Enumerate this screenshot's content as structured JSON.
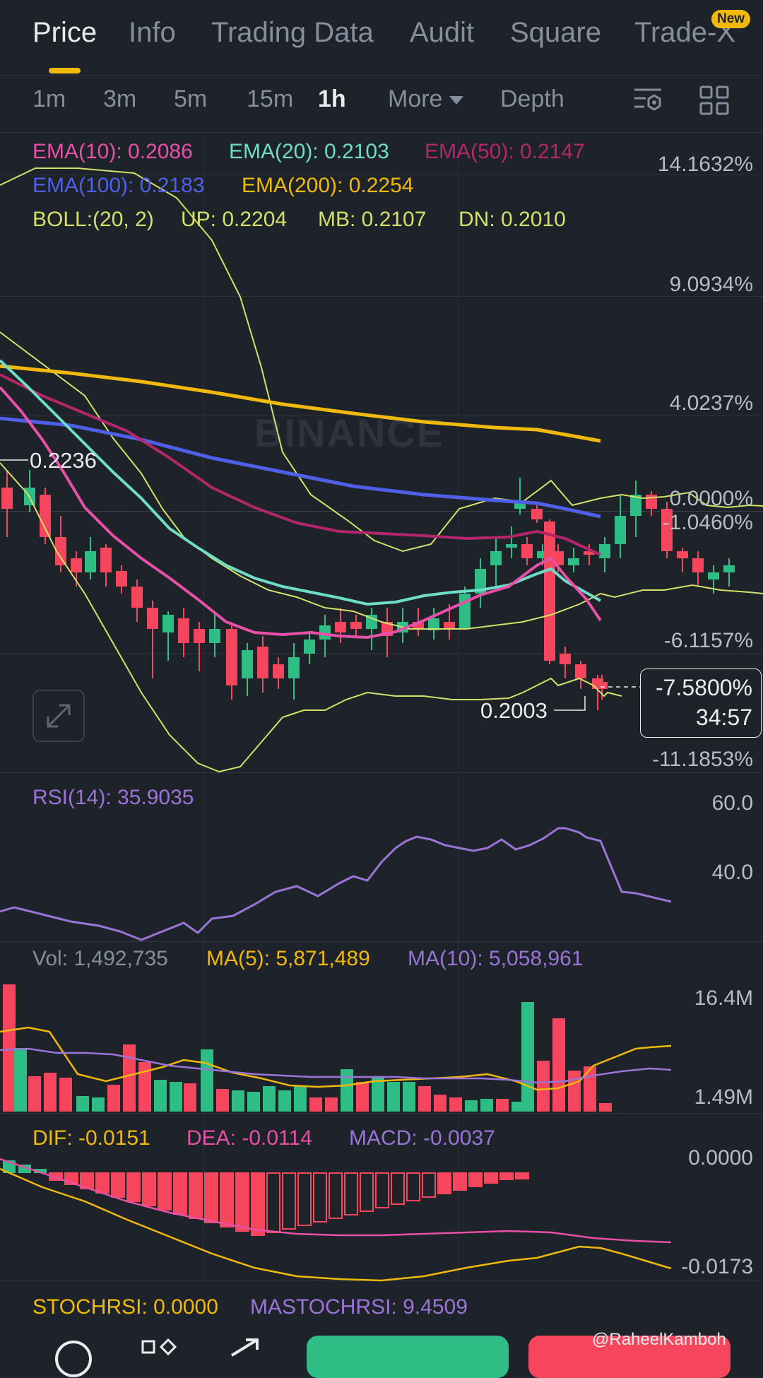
{
  "tabs": [
    {
      "label": "Price",
      "active": true
    },
    {
      "label": "Info",
      "active": false
    },
    {
      "label": "Trading Data",
      "active": false
    },
    {
      "label": "Audit",
      "active": false
    },
    {
      "label": "Square",
      "active": false
    },
    {
      "label": "Trade-X",
      "active": false
    }
  ],
  "new_badge": "New",
  "timeframes": [
    "1m",
    "3m",
    "5m",
    "15m",
    "1h"
  ],
  "active_timeframe": "1h",
  "more_label": "More",
  "depth_label": "Depth",
  "indicators": {
    "ema10": "EMA(10): 0.2086",
    "ema20": "EMA(20): 0.2103",
    "ema50": "EMA(50): 0.2147",
    "ema100": "EMA(100): 0.2183",
    "ema200": "EMA(200): 0.2254",
    "boll": "BOLL:(20, 2)",
    "boll_up": "UP: 0.2204",
    "boll_mb": "MB: 0.2107",
    "boll_dn": "DN: 0.2010"
  },
  "price_axis": [
    "14.1632%",
    "9.0934%",
    "4.0237%",
    "0.0000%",
    "-1.0460%",
    "-6.1157%",
    "-11.1853%"
  ],
  "high_label": "0.2236",
  "low_label": "0.2003",
  "current": {
    "pct": "-7.5800%",
    "countdown": "34:57"
  },
  "watermark": "BINANCE",
  "rsi": {
    "label": "RSI(14): 35.9035",
    "axis": [
      "60.0",
      "40.0"
    ]
  },
  "volume": {
    "vol": "Vol: 1,492,735",
    "ma5": "MA(5): 5,871,489",
    "ma10": "MA(10): 5,058,961",
    "axis": [
      "16.4M",
      "1.49M"
    ]
  },
  "macd": {
    "dif": "DIF: -0.0151",
    "dea": "DEA: -0.0114",
    "macd": "MACD: -0.0037",
    "axis": [
      "0.0000",
      "-0.0173"
    ]
  },
  "stochrsi": {
    "stoch": "STOCHRSI: 0.0000",
    "mastoch": "MASTOCHRSI: 9.4509"
  },
  "credit": "@RaheelKamboh",
  "colors": {
    "background": "#1e2329",
    "up": "#2ebd85",
    "down": "#f6465d",
    "accent": "#f0b90b",
    "ema10": "#e84fa8",
    "ema20": "#6fdcc6",
    "ema50": "#b3266b",
    "ema100": "#4f5fe8",
    "ema200": "#f0b90b",
    "boll": "#d4e06a",
    "rsi": "#9b74d9"
  },
  "icons": [
    "chart-settings-icon",
    "grid-layout-icon",
    "expand-icon",
    "caret-down-icon"
  ]
}
